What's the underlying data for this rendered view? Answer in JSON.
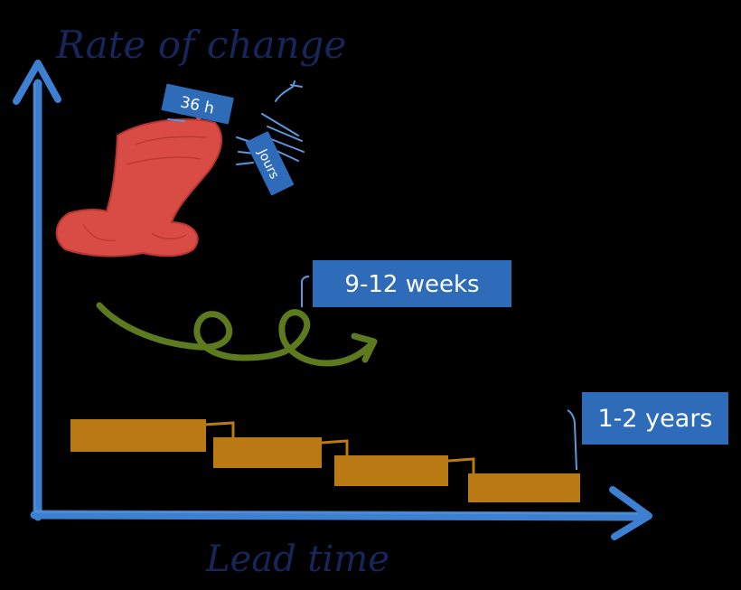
{
  "axes": {
    "y_label": "Rate of change",
    "x_label": "Lead time"
  },
  "tags": {
    "fast_hours": "36 h",
    "fast_days": "Jours",
    "medium": "9-12 weeks",
    "slow": "1-2 years"
  },
  "colors": {
    "background": "#000000",
    "axis": "#3d7fd0",
    "tag_fill": "#2e6bb8",
    "rocket": "#d94b45",
    "spiral": "#5d7a1e",
    "blocks": "#b97a14",
    "ink": "#17265a"
  }
}
